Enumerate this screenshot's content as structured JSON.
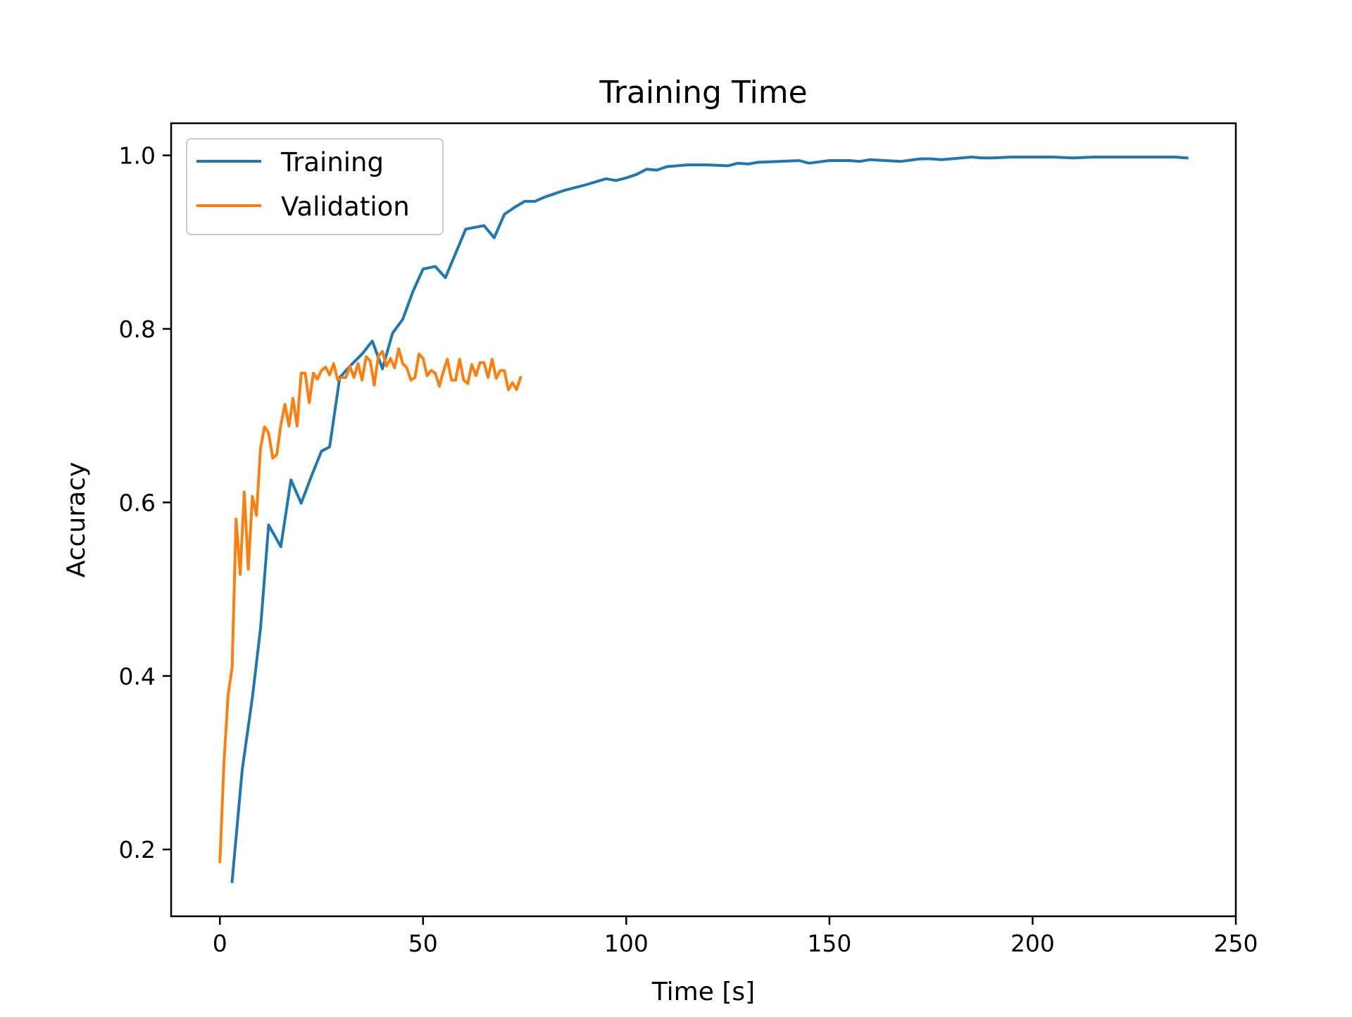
{
  "chart_data": {
    "type": "line",
    "title": "Training Time",
    "xlabel": "Time [s]",
    "ylabel": "Accuracy",
    "xlim": [
      -12,
      250
    ],
    "ylim": [
      0.123,
      1.037
    ],
    "xticks": [
      0,
      50,
      100,
      150,
      200,
      250
    ],
    "yticks": [
      0.2,
      0.4,
      0.6,
      0.8,
      1.0
    ],
    "xtick_labels": [
      "0",
      "50",
      "100",
      "150",
      "200",
      "250"
    ],
    "ytick_labels": [
      "0.2",
      "0.4",
      "0.6",
      "0.8",
      "1.0"
    ],
    "grid": false,
    "legend_position": "top-left",
    "series": [
      {
        "name": "Training",
        "color": "#1f77b4",
        "x": [
          3,
          5.5,
          8,
          10,
          12,
          15,
          17.5,
          20,
          22.5,
          25,
          27,
          29.5,
          32,
          35,
          37.5,
          40,
          42.5,
          45,
          47.5,
          50,
          53,
          55.5,
          58,
          60.5,
          65,
          67.5,
          70,
          72.5,
          75,
          77.5,
          80,
          85,
          90,
          95,
          97.5,
          100,
          102.5,
          105,
          107.5,
          110,
          115,
          120,
          125,
          127.5,
          130,
          132.5,
          137.5,
          142.5,
          145,
          150,
          155,
          157.5,
          160,
          167.5,
          172.5,
          175,
          177.5,
          180,
          185,
          187.5,
          190,
          195,
          200,
          205,
          210,
          215,
          220,
          225,
          230,
          235,
          238
        ],
        "values": [
          0.163,
          0.292,
          0.375,
          0.455,
          0.574,
          0.549,
          0.626,
          0.599,
          0.63,
          0.659,
          0.664,
          0.744,
          0.757,
          0.771,
          0.786,
          0.754,
          0.795,
          0.811,
          0.843,
          0.869,
          0.872,
          0.859,
          0.887,
          0.915,
          0.919,
          0.905,
          0.932,
          0.94,
          0.947,
          0.947,
          0.952,
          0.96,
          0.966,
          0.973,
          0.971,
          0.974,
          0.978,
          0.984,
          0.983,
          0.987,
          0.989,
          0.989,
          0.988,
          0.991,
          0.99,
          0.992,
          0.993,
          0.994,
          0.991,
          0.994,
          0.994,
          0.993,
          0.995,
          0.993,
          0.996,
          0.996,
          0.995,
          0.996,
          0.998,
          0.997,
          0.997,
          0.998,
          0.998,
          0.998,
          0.997,
          0.998,
          0.998,
          0.998,
          0.998,
          0.998,
          0.997
        ]
      },
      {
        "name": "Validation",
        "color": "#ff7f0e",
        "x": [
          0,
          1,
          2,
          3,
          4,
          5,
          6,
          7,
          8,
          9,
          10,
          11,
          12,
          13,
          14,
          15,
          16,
          17,
          18,
          19,
          20,
          21,
          22,
          23,
          24,
          25,
          26,
          27,
          28,
          29,
          30,
          31,
          32,
          33,
          34,
          35,
          36,
          37,
          38,
          39,
          40,
          41,
          42,
          43,
          44,
          45,
          46,
          47,
          48,
          49,
          50,
          51,
          52,
          53,
          54,
          55,
          56,
          57,
          58,
          59,
          60,
          61,
          62,
          63,
          64,
          65,
          66,
          67,
          68,
          69,
          70,
          71,
          72,
          73,
          74
        ],
        "values": [
          0.186,
          0.299,
          0.377,
          0.41,
          0.581,
          0.517,
          0.612,
          0.523,
          0.607,
          0.585,
          0.663,
          0.687,
          0.68,
          0.651,
          0.655,
          0.689,
          0.713,
          0.688,
          0.72,
          0.688,
          0.749,
          0.749,
          0.715,
          0.749,
          0.742,
          0.752,
          0.756,
          0.747,
          0.76,
          0.741,
          0.744,
          0.744,
          0.757,
          0.744,
          0.76,
          0.741,
          0.768,
          0.763,
          0.735,
          0.769,
          0.774,
          0.757,
          0.766,
          0.755,
          0.777,
          0.76,
          0.755,
          0.741,
          0.744,
          0.771,
          0.766,
          0.746,
          0.752,
          0.749,
          0.734,
          0.751,
          0.765,
          0.741,
          0.741,
          0.765,
          0.741,
          0.737,
          0.759,
          0.746,
          0.761,
          0.761,
          0.744,
          0.765,
          0.743,
          0.752,
          0.752,
          0.73,
          0.738,
          0.73,
          0.744
        ]
      }
    ]
  }
}
